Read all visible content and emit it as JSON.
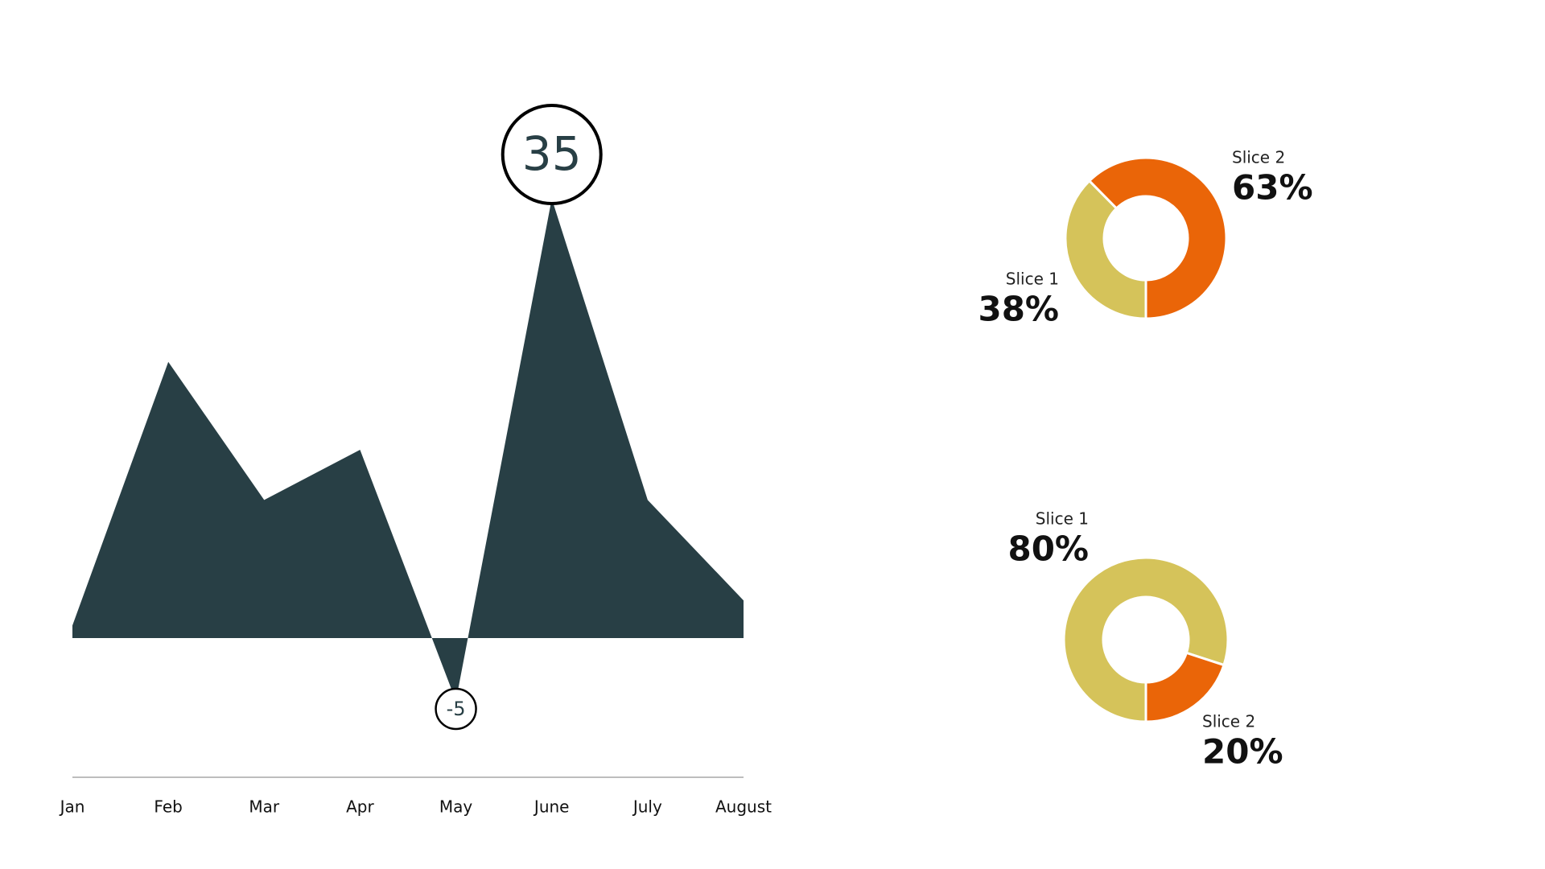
{
  "chart_data": [
    {
      "type": "area",
      "categories": [
        "Jan",
        "Feb",
        "Mar",
        "Apr",
        "May",
        "June",
        "July",
        "August"
      ],
      "values": [
        1,
        22,
        11,
        15,
        -5,
        35,
        11,
        3
      ],
      "color": "#283f45"
    },
    {
      "type": "donut",
      "categories": [
        "Slice 1",
        "Slice 2"
      ],
      "values": [
        38,
        63
      ],
      "value_labels": [
        "38%",
        "63%"
      ],
      "colors": [
        "#d5c35a",
        "#ea6508"
      ]
    },
    {
      "type": "donut",
      "categories": [
        "Slice 1",
        "Slice 2"
      ],
      "values": [
        80,
        20
      ],
      "value_labels": [
        "80%",
        "20%"
      ],
      "colors": [
        "#d5c35a",
        "#ea6508"
      ]
    }
  ]
}
